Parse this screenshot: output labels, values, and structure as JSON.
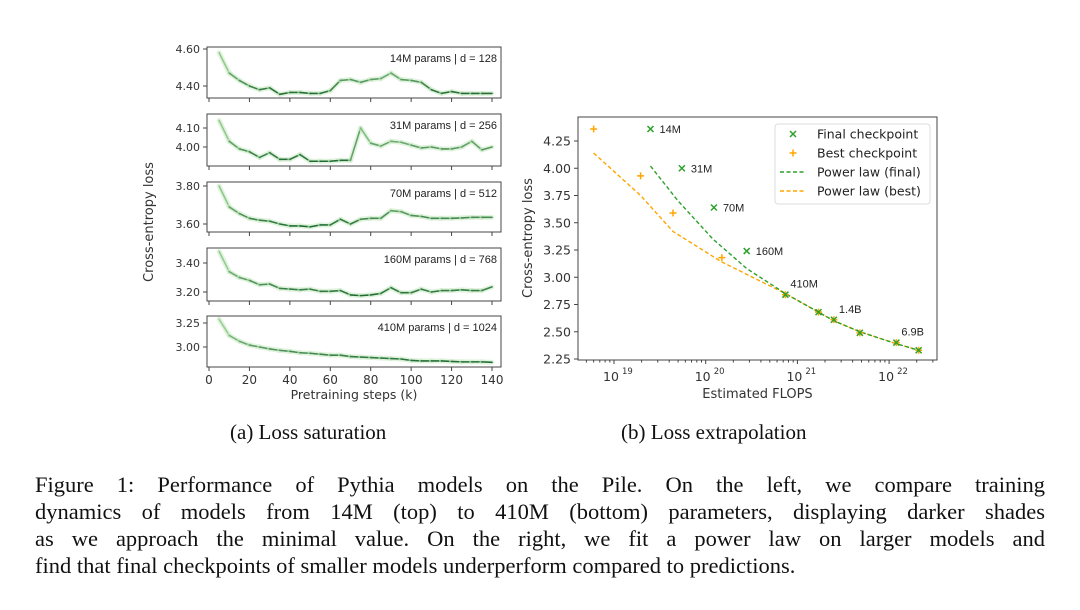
{
  "chart_data": [
    {
      "type": "line",
      "title": "Loss saturation",
      "xlabel": "Pretraining steps (k)",
      "ylabel": "Cross-entropy loss",
      "x_ticks": [
        0,
        20,
        40,
        60,
        80,
        100,
        120,
        140
      ],
      "x": [
        5,
        10,
        15,
        20,
        25,
        30,
        35,
        40,
        45,
        50,
        55,
        60,
        65,
        70,
        75,
        80,
        85,
        90,
        95,
        100,
        105,
        110,
        115,
        120,
        125,
        130,
        135,
        140
      ],
      "panels": [
        {
          "label": "14M params | d = 128",
          "y_ticks": [
            4.4,
            4.6
          ],
          "y_tick_labels": [
            "4.40",
            "4.60"
          ],
          "values": [
            4.58,
            4.47,
            4.43,
            4.4,
            4.38,
            4.39,
            4.355,
            4.365,
            4.365,
            4.36,
            4.36,
            4.375,
            4.43,
            4.435,
            4.42,
            4.435,
            4.44,
            4.47,
            4.435,
            4.43,
            4.42,
            4.38,
            4.36,
            4.37,
            4.36,
            4.36,
            4.36,
            4.36
          ]
        },
        {
          "label": "31M params | d = 256",
          "y_ticks": [
            4.0,
            4.1
          ],
          "y_tick_labels": [
            "4.00",
            "4.10"
          ],
          "values": [
            4.14,
            4.03,
            3.99,
            3.975,
            3.945,
            3.97,
            3.935,
            3.935,
            3.96,
            3.925,
            3.925,
            3.925,
            3.93,
            3.93,
            4.1,
            4.02,
            4.005,
            4.03,
            4.025,
            4.01,
            3.995,
            4.0,
            3.99,
            3.99,
            4.0,
            4.03,
            3.985,
            4.0
          ]
        },
        {
          "label": "70M params | d = 512",
          "y_ticks": [
            3.6,
            3.8
          ],
          "y_tick_labels": [
            "3.60",
            "3.80"
          ],
          "values": [
            3.8,
            3.69,
            3.655,
            3.63,
            3.62,
            3.615,
            3.6,
            3.59,
            3.59,
            3.585,
            3.595,
            3.595,
            3.625,
            3.6,
            3.625,
            3.63,
            3.63,
            3.67,
            3.665,
            3.645,
            3.64,
            3.63,
            3.63,
            3.63,
            3.632,
            3.635,
            3.635,
            3.635
          ]
        },
        {
          "label": "160M params | d = 768",
          "y_ticks": [
            3.2,
            3.4
          ],
          "y_tick_labels": [
            "3.20",
            "3.40"
          ],
          "values": [
            3.48,
            3.34,
            3.3,
            3.28,
            3.25,
            3.255,
            3.225,
            3.22,
            3.215,
            3.22,
            3.205,
            3.205,
            3.21,
            3.18,
            3.175,
            3.18,
            3.19,
            3.23,
            3.195,
            3.195,
            3.22,
            3.2,
            3.21,
            3.21,
            3.215,
            3.21,
            3.21,
            3.235
          ]
        },
        {
          "label": "410M params | d = 1024",
          "y_ticks": [
            3.0,
            3.25
          ],
          "y_tick_labels": [
            "3.00",
            "3.25"
          ],
          "values": [
            3.29,
            3.12,
            3.06,
            3.02,
            3.0,
            2.98,
            2.965,
            2.955,
            2.94,
            2.935,
            2.925,
            2.915,
            2.915,
            2.9,
            2.895,
            2.89,
            2.885,
            2.88,
            2.875,
            2.86,
            2.855,
            2.855,
            2.855,
            2.85,
            2.845,
            2.845,
            2.845,
            2.84
          ]
        }
      ]
    },
    {
      "type": "scatter",
      "title": "Loss extrapolation",
      "xlabel": "Estimated FLOPS",
      "ylabel": "Cross-entropy loss",
      "x_scale": "log",
      "xlim": [
        4e+18,
        3.2e+22
      ],
      "ylim": [
        2.22,
        4.42
      ],
      "x_ticks": [
        1e+19,
        1e+20,
        1e+21,
        1e+22
      ],
      "x_tick_labels": [
        [
          "10",
          "19"
        ],
        [
          "10",
          "20"
        ],
        [
          "10",
          "21"
        ],
        [
          "10",
          "22"
        ]
      ],
      "y_ticks": [
        2.25,
        2.5,
        2.75,
        3.0,
        3.25,
        3.5,
        3.75,
        4.0,
        4.25
      ],
      "y_tick_labels": [
        "2.25",
        "2.50",
        "2.75",
        "3.00",
        "3.25",
        "3.50",
        "3.75",
        "4.00",
        "4.25"
      ],
      "legend_position": "top-right",
      "series": [
        {
          "name": "Final checkpoint",
          "marker": "x",
          "color": "#2ca02c",
          "points": [
            [
              2.5e+19,
              4.36
            ],
            [
              5.5e+19,
              4.0
            ],
            [
              1.23e+20,
              3.64
            ],
            [
              2.8e+20,
              3.24
            ],
            [
              7.4e+20,
              2.84
            ],
            [
              1.7e+21,
              2.68
            ],
            [
              2.5e+21,
              2.61
            ],
            [
              4.8e+21,
              2.49
            ],
            [
              1.2e+22,
              2.4
            ],
            [
              2.1e+22,
              2.33
            ]
          ],
          "labels": [
            "14M",
            "31M",
            "70M",
            "160M",
            "410M",
            "",
            "1.4B",
            "",
            "6.9B",
            ""
          ]
        },
        {
          "name": "Best checkpoint",
          "marker": "+",
          "color": "#ffa500",
          "points": [
            [
              6e+18,
              4.36
            ],
            [
              1.95e+19,
              3.93
            ],
            [
              4.4e+19,
              3.59
            ],
            [
              1.5e+20,
              3.18
            ],
            [
              7.4e+20,
              2.84
            ],
            [
              1.7e+21,
              2.68
            ],
            [
              2.5e+21,
              2.61
            ],
            [
              4.8e+21,
              2.49
            ],
            [
              1.2e+22,
              2.4
            ],
            [
              2.1e+22,
              2.33
            ]
          ]
        },
        {
          "name": "Power law (final)",
          "style": "dashed",
          "color": "#2ca02c",
          "points": [
            [
              2.5e+19,
              4.02
            ],
            [
              5e+19,
              3.7
            ],
            [
              1.2e+20,
              3.35
            ],
            [
              2.8e+20,
              3.08
            ],
            [
              7.4e+20,
              2.85
            ],
            [
              1.7e+21,
              2.68
            ],
            [
              2.5e+21,
              2.6
            ],
            [
              4.8e+21,
              2.5
            ],
            [
              1.2e+22,
              2.39
            ],
            [
              2.1e+22,
              2.33
            ]
          ]
        },
        {
          "name": "Power law (best)",
          "style": "dashed",
          "color": "#ffa500",
          "points": [
            [
              6e+18,
              4.14
            ],
            [
              1.95e+19,
              3.75
            ],
            [
              4.4e+19,
              3.42
            ],
            [
              1.5e+20,
              3.14
            ],
            [
              7.4e+20,
              2.85
            ],
            [
              1.7e+21,
              2.68
            ],
            [
              2.5e+21,
              2.6
            ],
            [
              4.8e+21,
              2.5
            ],
            [
              1.2e+22,
              2.39
            ],
            [
              2.1e+22,
              2.33
            ]
          ]
        }
      ]
    }
  ],
  "subcaptions": {
    "a": "(a) Loss saturation",
    "b": "(b) Loss extrapolation"
  },
  "caption": [
    "Figure 1:  Performance of Pythia models on the Pile.  On the left, we compare training",
    "dynamics of models from 14M (top) to 410M (bottom) parameters, displaying darker shades",
    "as we approach the minimal value. On the right, we fit a power law on larger models and",
    "find that final checkpoints of smaller models underperform compared to predictions."
  ]
}
